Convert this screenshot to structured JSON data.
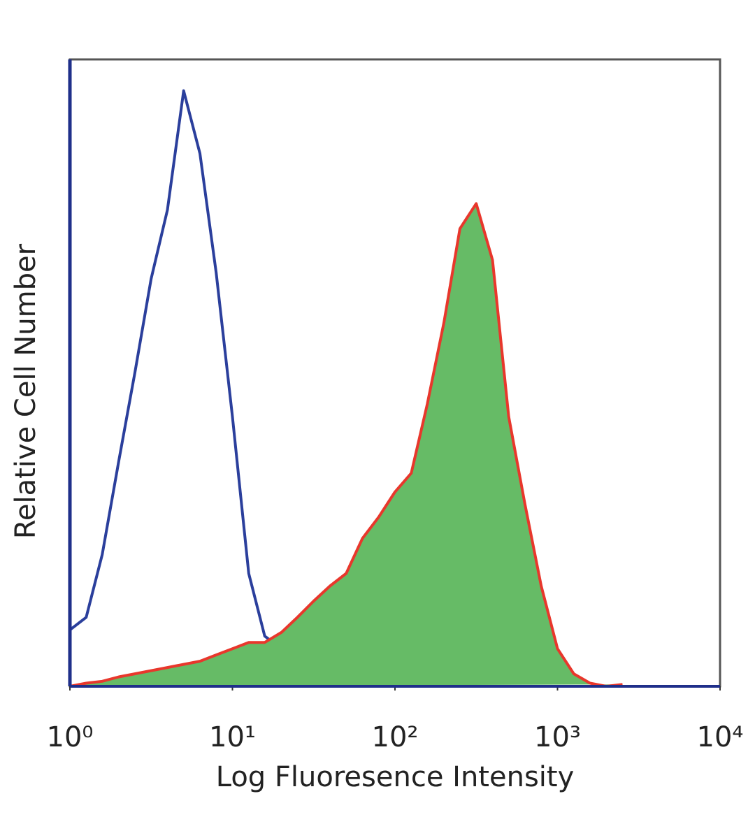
{
  "chart_data": {
    "type": "area",
    "x_label": "Log Fluoresence Intensity",
    "y_label": "Relative Cell Number",
    "xscale": "log",
    "xlim": [
      1,
      10000
    ],
    "ylim": [
      0,
      100
    ],
    "xticks": [
      {
        "value": 1,
        "label": "10⁰"
      },
      {
        "value": 10,
        "label": "10¹"
      },
      {
        "value": 100,
        "label": "10²"
      },
      {
        "value": 1000,
        "label": "10³"
      },
      {
        "value": 10000,
        "label": "10⁴"
      }
    ],
    "x": [
      1,
      1.26,
      1.58,
      2.0,
      2.51,
      3.16,
      3.98,
      5.01,
      6.31,
      7.94,
      10,
      12.6,
      15.8,
      20,
      25.1,
      31.6,
      39.8,
      50.1,
      63.1,
      79.4,
      100,
      126,
      158,
      200,
      251,
      316,
      398,
      501,
      631,
      794,
      1000,
      1259,
      1585,
      1995,
      2512
    ],
    "series": [
      {
        "color": "#2b3f9c",
        "filled": false,
        "values": [
          9,
          11,
          21,
          36,
          50,
          65,
          76,
          95,
          85,
          66,
          43,
          18,
          8,
          6,
          3.5,
          2.5,
          2,
          0.2,
          0,
          0,
          0,
          0,
          0,
          0,
          0,
          0,
          0,
          0,
          0,
          0,
          0,
          0,
          0,
          0,
          0
        ]
      },
      {
        "color": "#e8372c",
        "fill": "#66bb66",
        "filled": true,
        "values": [
          0,
          0.5,
          0.8,
          1.5,
          2,
          2.5,
          3,
          3.5,
          4,
          5,
          6,
          7,
          7,
          8.6,
          11,
          13.6,
          16,
          18,
          23.6,
          27,
          31,
          34,
          45,
          58,
          73,
          77,
          68,
          43,
          29,
          16,
          6,
          2,
          0.5,
          0,
          0.3
        ]
      }
    ]
  }
}
